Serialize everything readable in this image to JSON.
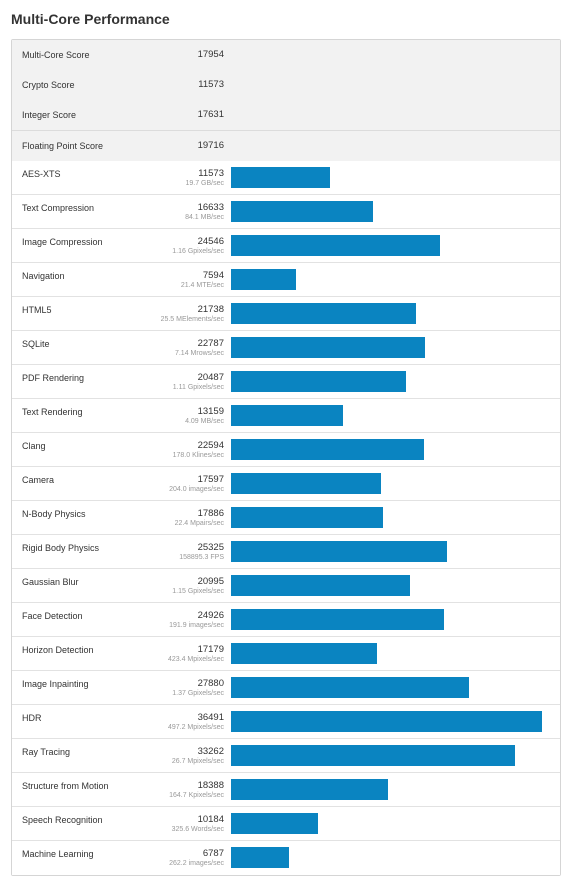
{
  "title": "Multi-Core Performance",
  "summary": [
    {
      "name": "Multi-Core Score",
      "score": "17954"
    },
    {
      "name": "Crypto Score",
      "score": "11573"
    },
    {
      "name": "Integer Score",
      "score": "17631"
    },
    {
      "name": "Floating Point Score",
      "score": "19716"
    }
  ],
  "bar_color": "#0a84c1",
  "bar_max_score": 37300,
  "benchmarks": [
    {
      "name": "AES-XTS",
      "score": "11573",
      "desc": "19.7 GB/sec"
    },
    {
      "name": "Text Compression",
      "score": "16633",
      "desc": "84.1 MB/sec"
    },
    {
      "name": "Image Compression",
      "score": "24546",
      "desc": "1.16 Gpixels/sec"
    },
    {
      "name": "Navigation",
      "score": "7594",
      "desc": "21.4 MTE/sec"
    },
    {
      "name": "HTML5",
      "score": "21738",
      "desc": "25.5 MElements/sec"
    },
    {
      "name": "SQLite",
      "score": "22787",
      "desc": "7.14 Mrows/sec"
    },
    {
      "name": "PDF Rendering",
      "score": "20487",
      "desc": "1.11 Gpixels/sec"
    },
    {
      "name": "Text Rendering",
      "score": "13159",
      "desc": "4.09 MB/sec"
    },
    {
      "name": "Clang",
      "score": "22594",
      "desc": "178.0 Klines/sec"
    },
    {
      "name": "Camera",
      "score": "17597",
      "desc": "204.0 images/sec"
    },
    {
      "name": "N-Body Physics",
      "score": "17886",
      "desc": "22.4 Mpairs/sec"
    },
    {
      "name": "Rigid Body Physics",
      "score": "25325",
      "desc": "158895.3 FPS"
    },
    {
      "name": "Gaussian Blur",
      "score": "20995",
      "desc": "1.15 Gpixels/sec"
    },
    {
      "name": "Face Detection",
      "score": "24926",
      "desc": "191.9 images/sec"
    },
    {
      "name": "Horizon Detection",
      "score": "17179",
      "desc": "423.4 Mpixels/sec"
    },
    {
      "name": "Image Inpainting",
      "score": "27880",
      "desc": "1.37 Gpixels/sec"
    },
    {
      "name": "HDR",
      "score": "36491",
      "desc": "497.2 Mpixels/sec"
    },
    {
      "name": "Ray Tracing",
      "score": "33262",
      "desc": "26.7 Mpixels/sec"
    },
    {
      "name": "Structure from Motion",
      "score": "18388",
      "desc": "164.7 Kpixels/sec"
    },
    {
      "name": "Speech Recognition",
      "score": "10184",
      "desc": "325.6 Words/sec"
    },
    {
      "name": "Machine Learning",
      "score": "6787",
      "desc": "262.2 images/sec"
    }
  ]
}
